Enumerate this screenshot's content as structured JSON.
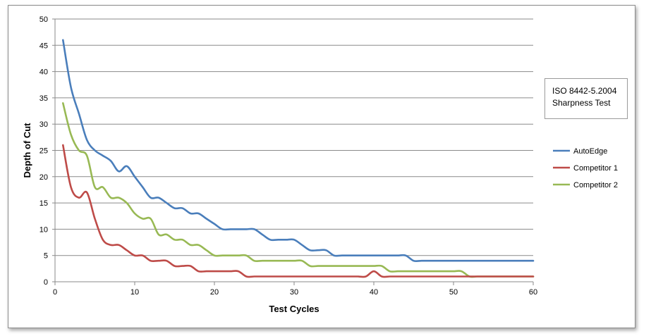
{
  "chart_data": {
    "type": "line",
    "title": "",
    "xlabel": "Test Cycles",
    "ylabel": "Depth of Cut",
    "xlim": [
      0,
      60
    ],
    "ylim": [
      0,
      50
    ],
    "x_ticks": [
      0,
      10,
      20,
      30,
      40,
      50,
      60
    ],
    "y_ticks": [
      0,
      5,
      10,
      15,
      20,
      25,
      30,
      35,
      40,
      45,
      50
    ],
    "grid": "horizontal",
    "legend_position": "right",
    "annotation": [
      "ISO 8442-5.2004",
      "Sharpness Test"
    ],
    "series": [
      {
        "name": "AutoEdge",
        "color": "#4a7ebb",
        "x": [
          1,
          2,
          3,
          4,
          5,
          6,
          7,
          8,
          9,
          10,
          11,
          12,
          13,
          14,
          15,
          16,
          17,
          18,
          19,
          20,
          21,
          22,
          23,
          24,
          25,
          26,
          27,
          28,
          29,
          30,
          31,
          32,
          33,
          34,
          35,
          36,
          37,
          38,
          39,
          40,
          41,
          42,
          43,
          44,
          45,
          46,
          47,
          48,
          49,
          50,
          51,
          52,
          53,
          54,
          55,
          56,
          57,
          58,
          59,
          60
        ],
        "values": [
          46,
          37,
          32,
          27,
          25,
          24,
          23,
          21,
          22,
          20,
          18,
          16,
          16,
          15,
          14,
          14,
          13,
          13,
          12,
          11,
          10,
          10,
          10,
          10,
          10,
          9,
          8,
          8,
          8,
          8,
          7,
          6,
          6,
          6,
          5,
          5,
          5,
          5,
          5,
          5,
          5,
          5,
          5,
          5,
          4,
          4,
          4,
          4,
          4,
          4,
          4,
          4,
          4,
          4,
          4,
          4,
          4,
          4,
          4,
          4
        ]
      },
      {
        "name": "Competitor 1",
        "color": "#be4b48",
        "x": [
          1,
          2,
          3,
          4,
          5,
          6,
          7,
          8,
          9,
          10,
          11,
          12,
          13,
          14,
          15,
          16,
          17,
          18,
          19,
          20,
          21,
          22,
          23,
          24,
          25,
          26,
          27,
          28,
          29,
          30,
          31,
          32,
          33,
          34,
          35,
          36,
          37,
          38,
          39,
          40,
          41,
          42,
          43,
          44,
          45,
          46,
          47,
          48,
          49,
          50,
          51,
          52,
          53,
          54,
          55,
          56,
          57,
          58,
          59,
          60
        ],
        "values": [
          26,
          18,
          16,
          17,
          12,
          8,
          7,
          7,
          6,
          5,
          5,
          4,
          4,
          4,
          3,
          3,
          3,
          2,
          2,
          2,
          2,
          2,
          2,
          1,
          1,
          1,
          1,
          1,
          1,
          1,
          1,
          1,
          1,
          1,
          1,
          1,
          1,
          1,
          1,
          2,
          1,
          1,
          1,
          1,
          1,
          1,
          1,
          1,
          1,
          1,
          1,
          1,
          1,
          1,
          1,
          1,
          1,
          1,
          1,
          1
        ]
      },
      {
        "name": "Competitor 2",
        "color": "#98b954",
        "x": [
          1,
          2,
          3,
          4,
          5,
          6,
          7,
          8,
          9,
          10,
          11,
          12,
          13,
          14,
          15,
          16,
          17,
          18,
          19,
          20,
          21,
          22,
          23,
          24,
          25,
          26,
          27,
          28,
          29,
          30,
          31,
          32,
          33,
          34,
          35,
          36,
          37,
          38,
          39,
          40,
          41,
          42,
          43,
          44,
          45,
          46,
          47,
          48,
          49,
          50,
          51,
          52,
          53,
          54,
          55,
          56,
          57,
          58,
          59,
          60
        ],
        "values": [
          34,
          28,
          25,
          24,
          18,
          18,
          16,
          16,
          15,
          13,
          12,
          12,
          9,
          9,
          8,
          8,
          7,
          7,
          6,
          5,
          5,
          5,
          5,
          5,
          4,
          4,
          4,
          4,
          4,
          4,
          4,
          3,
          3,
          3,
          3,
          3,
          3,
          3,
          3,
          3,
          3,
          2,
          2,
          2,
          2,
          2,
          2,
          2,
          2,
          2,
          2,
          1,
          1,
          1,
          1,
          1,
          1,
          1,
          1,
          1
        ]
      }
    ]
  }
}
